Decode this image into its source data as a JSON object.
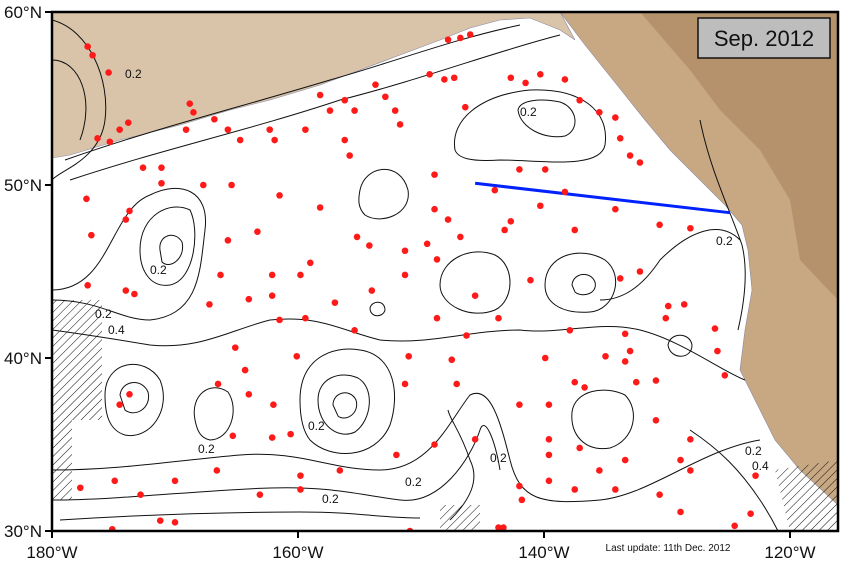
{
  "title_box": {
    "label": "Sep. 2012"
  },
  "footer": {
    "last_update": "Last update: 11th Dec. 2012"
  },
  "axes": {
    "lon_range": [
      -180,
      -115
    ],
    "lat_range": [
      30,
      60
    ],
    "x_ticks": [
      {
        "value": -180,
        "label": "180°W"
      },
      {
        "value": -160,
        "label": "160°W"
      },
      {
        "value": -140,
        "label": "140°W"
      },
      {
        "value": -120,
        "label": "120°W"
      }
    ],
    "y_ticks": [
      {
        "value": 30,
        "label": "30°N"
      },
      {
        "value": 40,
        "label": "40°N"
      },
      {
        "value": 50,
        "label": "50°N"
      },
      {
        "value": 60,
        "label": "60°N"
      }
    ]
  },
  "contour_labels": [
    "0.2",
    "0.2",
    "0.2",
    "0.2",
    "0.4",
    "0.2",
    "0.2",
    "0.2",
    "0.2",
    "0.2",
    "0.2",
    "0.2",
    "0.4"
  ],
  "colors": {
    "float_dots": "#ff1a1a",
    "section_line": "#0022ff",
    "land": "#c8a882",
    "ocean": "#ffffff",
    "title_box": "#bdbdbd"
  },
  "section_line": {
    "start": [
      -145.6,
      50.1
    ],
    "end": [
      -124.9,
      48.4
    ]
  },
  "floats": [
    [
      -177.1,
      58.0
    ],
    [
      -176.7,
      57.5
    ],
    [
      -175.4,
      56.5
    ],
    [
      -176.3,
      52.7
    ],
    [
      -175.3,
      52.5
    ],
    [
      -174.5,
      53.2
    ],
    [
      -173.8,
      53.6
    ],
    [
      -172.6,
      51.0
    ],
    [
      -171.1,
      51.0
    ],
    [
      -171.1,
      50.1
    ],
    [
      -177.2,
      49.2
    ],
    [
      -176.8,
      47.1
    ],
    [
      -173.7,
      48.5
    ],
    [
      -174.0,
      48.0
    ],
    [
      -177.1,
      44.2
    ],
    [
      -174.0,
      43.9
    ],
    [
      -173.3,
      43.7
    ],
    [
      -168.8,
      54.7
    ],
    [
      -168.5,
      54.2
    ],
    [
      -169.1,
      53.2
    ],
    [
      -166.8,
      53.8
    ],
    [
      -165.7,
      53.2
    ],
    [
      -167.7,
      50.0
    ],
    [
      -146.8,
      58.5
    ],
    [
      -146.0,
      58.7
    ],
    [
      -147.8,
      58.4
    ],
    [
      -149.3,
      56.4
    ],
    [
      -148.1,
      56.1
    ],
    [
      -147.3,
      56.2
    ],
    [
      -153.7,
      55.8
    ],
    [
      -152.9,
      55.1
    ],
    [
      -152.1,
      54.3
    ],
    [
      -151.7,
      53.5
    ],
    [
      -156.2,
      54.9
    ],
    [
      -155.4,
      54.3
    ],
    [
      -158.2,
      55.2
    ],
    [
      -157.4,
      54.3
    ],
    [
      -156.2,
      52.6
    ],
    [
      -155.8,
      51.7
    ],
    [
      -146.4,
      54.5
    ],
    [
      -142.7,
      56.2
    ],
    [
      -141.5,
      55.9
    ],
    [
      -140.3,
      56.4
    ],
    [
      -138.3,
      56.1
    ],
    [
      -137.1,
      54.9
    ],
    [
      -135.5,
      54.2
    ],
    [
      -134.2,
      53.9
    ],
    [
      -133.8,
      52.7
    ],
    [
      -133.0,
      51.7
    ],
    [
      -132.2,
      51.3
    ],
    [
      -162.3,
      53.2
    ],
    [
      -161.9,
      52.6
    ],
    [
      -159.4,
      53.2
    ],
    [
      -164.7,
      52.6
    ],
    [
      -165.4,
      50.0
    ],
    [
      -161.5,
      49.4
    ],
    [
      -158.2,
      48.7
    ],
    [
      -148.9,
      50.6
    ],
    [
      -148.9,
      48.6
    ],
    [
      -147.8,
      48.0
    ],
    [
      -144.0,
      49.7
    ],
    [
      -142.0,
      50.9
    ],
    [
      -139.9,
      50.9
    ],
    [
      -138.3,
      49.6
    ],
    [
      -140.3,
      48.8
    ],
    [
      -142.7,
      47.9
    ],
    [
      -143.2,
      47.4
    ],
    [
      -137.5,
      47.4
    ],
    [
      -134.2,
      48.6
    ],
    [
      -130.6,
      47.7
    ],
    [
      -128.1,
      47.5
    ],
    [
      -155.2,
      47.0
    ],
    [
      -154.2,
      46.5
    ],
    [
      -151.3,
      46.2
    ],
    [
      -149.5,
      46.6
    ],
    [
      -146.8,
      47.0
    ],
    [
      -148.7,
      45.7
    ],
    [
      -159.0,
      45.5
    ],
    [
      -159.8,
      44.8
    ],
    [
      -162.1,
      44.8
    ],
    [
      -165.7,
      46.8
    ],
    [
      -163.3,
      47.3
    ],
    [
      -166.3,
      44.8
    ],
    [
      -167.2,
      43.1
    ],
    [
      -164.0,
      43.4
    ],
    [
      -162.1,
      43.6
    ],
    [
      -157.0,
      43.2
    ],
    [
      -154.0,
      43.9
    ],
    [
      -151.3,
      44.8
    ],
    [
      -141.1,
      44.5
    ],
    [
      -133.8,
      44.6
    ],
    [
      -129.9,
      43.0
    ],
    [
      -128.6,
      43.1
    ],
    [
      -130.1,
      42.3
    ],
    [
      -143.7,
      42.3
    ],
    [
      -148.7,
      42.3
    ],
    [
      -146.3,
      41.3
    ],
    [
      -161.5,
      42.2
    ],
    [
      -159.4,
      42.3
    ],
    [
      -155.4,
      41.6
    ],
    [
      -137.9,
      41.6
    ],
    [
      -133.4,
      41.4
    ],
    [
      -133.0,
      40.4
    ],
    [
      -133.4,
      39.8
    ],
    [
      -126.1,
      41.7
    ],
    [
      -125.9,
      40.4
    ],
    [
      -125.3,
      39.0
    ],
    [
      -165.1,
      40.6
    ],
    [
      -160.1,
      40.1
    ],
    [
      -164.3,
      39.3
    ],
    [
      -151.0,
      40.1
    ],
    [
      -147.5,
      39.9
    ],
    [
      -147.1,
      38.5
    ],
    [
      -139.9,
      40.0
    ],
    [
      -137.5,
      38.6
    ],
    [
      -135.0,
      40.1
    ],
    [
      -132.5,
      38.6
    ],
    [
      -130.9,
      38.7
    ],
    [
      -174.5,
      37.3
    ],
    [
      -173.7,
      37.9
    ],
    [
      -166.5,
      38.5
    ],
    [
      -164.0,
      37.9
    ],
    [
      -162.0,
      37.3
    ],
    [
      -151.3,
      38.5
    ],
    [
      -142.0,
      37.3
    ],
    [
      -139.6,
      37.3
    ],
    [
      -165.3,
      35.5
    ],
    [
      -162.1,
      35.4
    ],
    [
      -160.6,
      35.6
    ],
    [
      -148.9,
      35.0
    ],
    [
      -145.6,
      35.3
    ],
    [
      -139.6,
      35.3
    ],
    [
      -139.6,
      34.4
    ],
    [
      -137.1,
      34.8
    ],
    [
      -135.5,
      33.5
    ],
    [
      -133.4,
      34.1
    ],
    [
      -130.9,
      36.4
    ],
    [
      -128.1,
      35.3
    ],
    [
      -128.9,
      34.1
    ],
    [
      -152.0,
      34.4
    ],
    [
      -156.6,
      33.5
    ],
    [
      -159.8,
      33.2
    ],
    [
      -166.6,
      33.5
    ],
    [
      -170.0,
      32.9
    ],
    [
      -172.8,
      32.1
    ],
    [
      -174.9,
      32.9
    ],
    [
      -177.7,
      32.5
    ],
    [
      -163.1,
      32.1
    ],
    [
      -159.8,
      32.4
    ],
    [
      -142.0,
      32.6
    ],
    [
      -141.8,
      31.8
    ],
    [
      -139.6,
      32.9
    ],
    [
      -137.5,
      32.4
    ],
    [
      -130.6,
      32.1
    ],
    [
      -128.1,
      33.5
    ],
    [
      -122.8,
      33.2
    ],
    [
      -123.2,
      31.0
    ],
    [
      -124.5,
      30.3
    ],
    [
      -128.9,
      31.1
    ],
    [
      -134.2,
      32.4
    ],
    [
      -171.2,
      30.6
    ],
    [
      -170.0,
      30.5
    ],
    [
      -175.1,
      30.1
    ],
    [
      -150.9,
      30.0
    ],
    [
      -143.7,
      30.2
    ],
    [
      -143.3,
      30.2
    ],
    [
      -136.7,
      38.3
    ],
    [
      -132.2,
      45.0
    ],
    [
      -145.6,
      43.6
    ]
  ]
}
